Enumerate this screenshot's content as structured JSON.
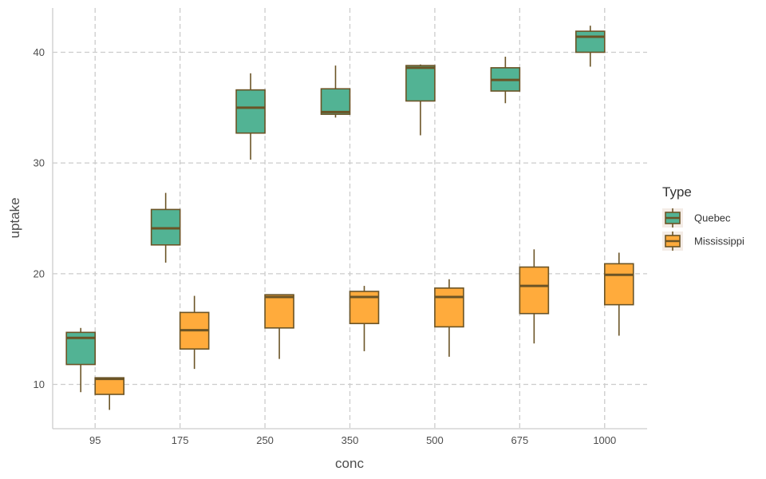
{
  "chart_data": {
    "type": "boxplot",
    "xlabel": "conc",
    "ylabel": "uptake",
    "categories": [
      "95",
      "175",
      "250",
      "350",
      "500",
      "675",
      "1000"
    ],
    "yticks": [
      10,
      20,
      30,
      40
    ],
    "ylim": [
      6,
      44
    ],
    "grid": true,
    "legend": {
      "title": "Type",
      "position": "right"
    },
    "series": [
      {
        "name": "Quebec",
        "color": "#52B394",
        "boxes": [
          {
            "min": 9.3,
            "q1": 11.8,
            "median": 14.2,
            "q3": 14.7,
            "max": 15.1
          },
          {
            "min": 21.0,
            "q1": 22.6,
            "median": 24.1,
            "q3": 25.8,
            "max": 27.3
          },
          {
            "min": 30.3,
            "q1": 32.7,
            "median": 35.0,
            "q3": 36.6,
            "max": 38.1
          },
          {
            "min": 34.1,
            "q1": 34.4,
            "median": 34.6,
            "q3": 36.7,
            "max": 38.8
          },
          {
            "min": 32.5,
            "q1": 35.6,
            "median": 38.6,
            "q3": 38.8,
            "max": 38.9
          },
          {
            "min": 35.4,
            "q1": 36.5,
            "median": 37.5,
            "q3": 38.6,
            "max": 39.6
          },
          {
            "min": 38.7,
            "q1": 40.0,
            "median": 41.4,
            "q3": 41.9,
            "max": 42.4
          }
        ]
      },
      {
        "name": "Mississippi",
        "color": "#FFAB3C",
        "boxes": [
          {
            "min": 7.7,
            "q1": 9.1,
            "median": 10.5,
            "q3": 10.6,
            "max": 10.6
          },
          {
            "min": 11.4,
            "q1": 13.2,
            "median": 14.9,
            "q3": 16.5,
            "max": 18.0
          },
          {
            "min": 12.3,
            "q1": 15.1,
            "median": 17.9,
            "q3": 18.1,
            "max": 18.1
          },
          {
            "min": 13.0,
            "q1": 15.5,
            "median": 17.9,
            "q3": 18.4,
            "max": 18.9
          },
          {
            "min": 12.5,
            "q1": 15.2,
            "median": 17.9,
            "q3": 18.7,
            "max": 19.5
          },
          {
            "min": 13.7,
            "q1": 16.4,
            "median": 18.9,
            "q3": 20.6,
            "max": 22.2
          },
          {
            "min": 14.4,
            "q1": 17.2,
            "median": 19.9,
            "q3": 20.9,
            "max": 21.9
          }
        ]
      }
    ],
    "outline_color": "#6B5426"
  }
}
